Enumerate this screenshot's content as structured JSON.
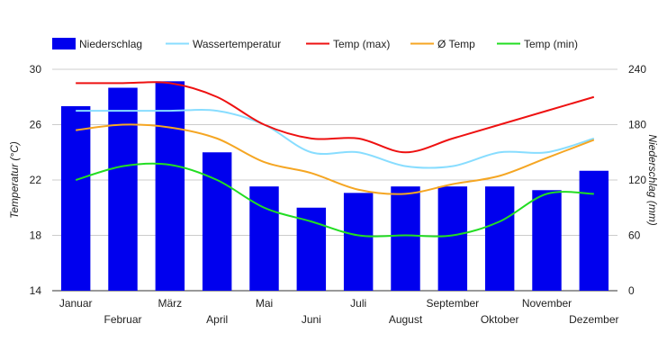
{
  "chart_data": {
    "type": "bar+line",
    "categories": [
      "Januar",
      "Februar",
      "März",
      "April",
      "Mai",
      "Juni",
      "Juli",
      "August",
      "September",
      "Oktober",
      "November",
      "Dezember"
    ],
    "bar_series": {
      "name": "Niederschlag",
      "color": "#0000ee",
      "axis": "right",
      "values": [
        200,
        220,
        227,
        150,
        113,
        90,
        106,
        113,
        113,
        113,
        109,
        130
      ]
    },
    "line_series": [
      {
        "name": "Wassertemperatur",
        "color": "#88ddff",
        "axis": "left",
        "values": [
          27,
          27,
          27,
          27,
          26,
          24,
          24,
          23,
          23,
          24,
          24,
          25
        ]
      },
      {
        "name": "Temp (max)",
        "color": "#ee1111",
        "axis": "left",
        "values": [
          29,
          29,
          29,
          28,
          26,
          25,
          25,
          24,
          25,
          26,
          27,
          28
        ]
      },
      {
        "name": "Ø Temp",
        "color": "#f5a623",
        "axis": "left",
        "values": [
          25.6,
          26,
          25.8,
          25,
          23.3,
          22.5,
          21.3,
          21,
          21.7,
          22.3,
          23.6,
          24.9
        ]
      },
      {
        "name": "Temp (min)",
        "color": "#22dd22",
        "axis": "left",
        "values": [
          22,
          23,
          23.1,
          22,
          20,
          19,
          18,
          18,
          18,
          19,
          21,
          21
        ]
      }
    ],
    "y_left": {
      "label": "Temperatur (°C)",
      "range": [
        14,
        30
      ],
      "ticks": [
        14,
        18,
        22,
        26,
        30
      ]
    },
    "y_right": {
      "label": "Niederschlag (mm)",
      "range": [
        0,
        240
      ],
      "ticks": [
        0,
        60,
        120,
        180,
        240
      ]
    },
    "grid": true,
    "legend": "top-left"
  }
}
